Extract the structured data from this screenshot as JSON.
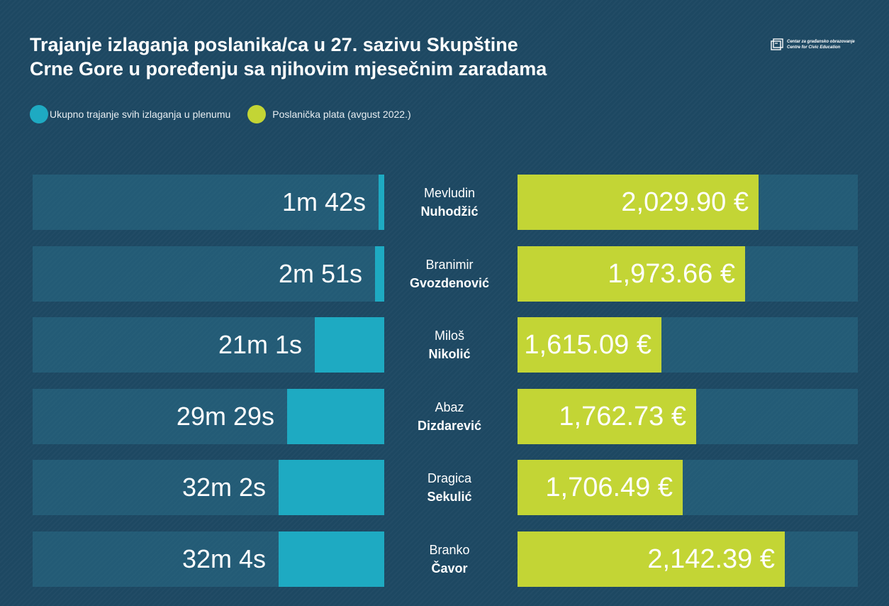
{
  "title": {
    "line1": "Trajanje izlaganja poslanika/ca  u 27. sazivu Skupštine",
    "line2": "Crne Gore u poređenju sa njihovim mjesečnim zaradama"
  },
  "logo": {
    "line1": "Centar za građansko obrazovanje",
    "line2": "Centre for Civic Education"
  },
  "legend": [
    {
      "label": "Ukupno trajanje svih izlaganja u plenumu",
      "color": "#1eaac2"
    },
    {
      "label": "Poslanička plata (avgust 2022.)",
      "color": "#c3d535"
    }
  ],
  "chart_data": {
    "type": "bar",
    "orientation": "horizontal-diverging",
    "categories": [
      "Mevludin Nuhodžić",
      "Branimir Gvozdenović",
      "Miloš Nikolić",
      "Abaz Dizdarević",
      "Dragica Sekulić",
      "Branko Čavor"
    ],
    "people": [
      {
        "first": "Mevludin",
        "last": "Nuhodžić"
      },
      {
        "first": "Branimir",
        "last": "Gvozdenović"
      },
      {
        "first": "Miloš",
        "last": "Nikolić"
      },
      {
        "first": "Abaz",
        "last": "Dizdarević"
      },
      {
        "first": "Dragica",
        "last": "Sekulić"
      },
      {
        "first": "Branko",
        "last": "Čavor"
      }
    ],
    "series": [
      {
        "name": "Ukupno trajanje svih izlaganja u plenumu",
        "color": "#1eaac2",
        "values": [
          102,
          171,
          1261,
          1769,
          1922,
          1924
        ],
        "labels": [
          "1m 42s",
          "2m 51s",
          "21m 1s",
          "29m 29s",
          "32m 2s",
          "32m 4s"
        ]
      },
      {
        "name": "Poslanička plata (avgust 2022.)",
        "color": "#c3d535",
        "values": [
          2029.9,
          1973.66,
          1615.09,
          1762.73,
          1706.49,
          2142.39
        ],
        "labels": [
          "2,029.90 €",
          "1,973.66 €",
          "1,615.09 €",
          "1,762.73 €",
          "1,706.49 €",
          "2,142.39 €"
        ]
      }
    ]
  }
}
